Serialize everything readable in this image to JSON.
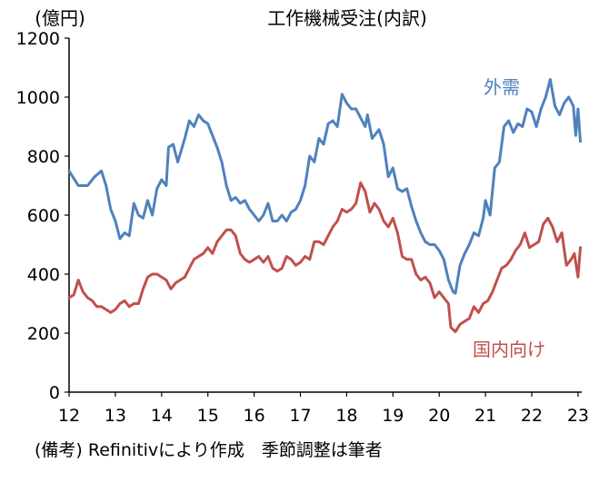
{
  "chart_data": {
    "type": "line",
    "title": "工作機械受注(内訳)",
    "ylabel": "(億円)",
    "xlabel": "",
    "source": "(備考) Refinitivにより作成　季節調整は筆者",
    "ylim": [
      0,
      1200
    ],
    "y_ticks": [
      "0",
      "200",
      "400",
      "600",
      "800",
      "1000",
      "1200"
    ],
    "y_tick_values": [
      0,
      200,
      400,
      600,
      800,
      1000,
      1200
    ],
    "x_ticks": [
      "12",
      "13",
      "14",
      "15",
      "16",
      "17",
      "18",
      "19",
      "20",
      "21",
      "22",
      "23"
    ],
    "x_tick_values": [
      2012,
      2013,
      2014,
      2015,
      2016,
      2017,
      2018,
      2019,
      2020,
      2021,
      2022,
      2023
    ],
    "xlim": [
      2012,
      2023.08
    ],
    "grid": false,
    "series": [
      {
        "name": "外需",
        "color": "#4f81bd",
        "label_color": "#4f81bd",
        "points": [
          [
            2012.0,
            750
          ],
          [
            2012.2,
            700
          ],
          [
            2012.4,
            700
          ],
          [
            2012.55,
            730
          ],
          [
            2012.7,
            750
          ],
          [
            2012.8,
            700
          ],
          [
            2012.9,
            620
          ],
          [
            2013.0,
            580
          ],
          [
            2013.1,
            520
          ],
          [
            2013.2,
            540
          ],
          [
            2013.3,
            530
          ],
          [
            2013.4,
            640
          ],
          [
            2013.5,
            600
          ],
          [
            2013.6,
            590
          ],
          [
            2013.7,
            650
          ],
          [
            2013.8,
            600
          ],
          [
            2013.9,
            690
          ],
          [
            2014.0,
            720
          ],
          [
            2014.1,
            700
          ],
          [
            2014.15,
            830
          ],
          [
            2014.25,
            840
          ],
          [
            2014.35,
            780
          ],
          [
            2014.5,
            860
          ],
          [
            2014.6,
            920
          ],
          [
            2014.7,
            900
          ],
          [
            2014.8,
            940
          ],
          [
            2014.9,
            920
          ],
          [
            2015.0,
            910
          ],
          [
            2015.1,
            870
          ],
          [
            2015.2,
            830
          ],
          [
            2015.3,
            780
          ],
          [
            2015.4,
            700
          ],
          [
            2015.5,
            650
          ],
          [
            2015.6,
            660
          ],
          [
            2015.7,
            640
          ],
          [
            2015.8,
            650
          ],
          [
            2015.9,
            620
          ],
          [
            2016.0,
            600
          ],
          [
            2016.1,
            580
          ],
          [
            2016.2,
            600
          ],
          [
            2016.3,
            640
          ],
          [
            2016.4,
            580
          ],
          [
            2016.5,
            580
          ],
          [
            2016.6,
            600
          ],
          [
            2016.7,
            580
          ],
          [
            2016.8,
            610
          ],
          [
            2016.9,
            620
          ],
          [
            2017.0,
            650
          ],
          [
            2017.1,
            700
          ],
          [
            2017.2,
            800
          ],
          [
            2017.3,
            780
          ],
          [
            2017.4,
            860
          ],
          [
            2017.5,
            840
          ],
          [
            2017.6,
            910
          ],
          [
            2017.7,
            920
          ],
          [
            2017.8,
            900
          ],
          [
            2017.9,
            1010
          ],
          [
            2018.0,
            980
          ],
          [
            2018.1,
            960
          ],
          [
            2018.2,
            960
          ],
          [
            2018.3,
            930
          ],
          [
            2018.4,
            900
          ],
          [
            2018.45,
            940
          ],
          [
            2018.55,
            860
          ],
          [
            2018.7,
            890
          ],
          [
            2018.8,
            840
          ],
          [
            2018.9,
            730
          ],
          [
            2019.0,
            760
          ],
          [
            2019.1,
            690
          ],
          [
            2019.2,
            680
          ],
          [
            2019.3,
            690
          ],
          [
            2019.4,
            630
          ],
          [
            2019.5,
            580
          ],
          [
            2019.6,
            540
          ],
          [
            2019.7,
            510
          ],
          [
            2019.8,
            500
          ],
          [
            2019.9,
            500
          ],
          [
            2020.0,
            480
          ],
          [
            2020.1,
            450
          ],
          [
            2020.2,
            380
          ],
          [
            2020.3,
            340
          ],
          [
            2020.35,
            335
          ],
          [
            2020.45,
            430
          ],
          [
            2020.55,
            470
          ],
          [
            2020.65,
            500
          ],
          [
            2020.75,
            540
          ],
          [
            2020.85,
            530
          ],
          [
            2020.95,
            590
          ],
          [
            2021.0,
            650
          ],
          [
            2021.1,
            600
          ],
          [
            2021.2,
            760
          ],
          [
            2021.3,
            780
          ],
          [
            2021.4,
            900
          ],
          [
            2021.5,
            920
          ],
          [
            2021.6,
            880
          ],
          [
            2021.7,
            910
          ],
          [
            2021.8,
            900
          ],
          [
            2021.9,
            960
          ],
          [
            2022.0,
            950
          ],
          [
            2022.1,
            900
          ],
          [
            2022.2,
            960
          ],
          [
            2022.3,
            1000
          ],
          [
            2022.4,
            1060
          ],
          [
            2022.5,
            970
          ],
          [
            2022.6,
            940
          ],
          [
            2022.7,
            980
          ],
          [
            2022.8,
            1000
          ],
          [
            2022.9,
            970
          ],
          [
            2022.95,
            870
          ],
          [
            2023.0,
            960
          ],
          [
            2023.05,
            850
          ]
        ]
      },
      {
        "name": "国内向け",
        "color": "#c0504d",
        "label_color": "#c0504d",
        "points": [
          [
            2012.0,
            320
          ],
          [
            2012.1,
            330
          ],
          [
            2012.2,
            380
          ],
          [
            2012.3,
            340
          ],
          [
            2012.4,
            320
          ],
          [
            2012.5,
            310
          ],
          [
            2012.6,
            290
          ],
          [
            2012.7,
            290
          ],
          [
            2012.8,
            280
          ],
          [
            2012.9,
            270
          ],
          [
            2013.0,
            280
          ],
          [
            2013.1,
            300
          ],
          [
            2013.2,
            310
          ],
          [
            2013.3,
            290
          ],
          [
            2013.4,
            300
          ],
          [
            2013.5,
            300
          ],
          [
            2013.6,
            350
          ],
          [
            2013.7,
            390
          ],
          [
            2013.8,
            400
          ],
          [
            2013.9,
            400
          ],
          [
            2014.0,
            390
          ],
          [
            2014.1,
            380
          ],
          [
            2014.2,
            350
          ],
          [
            2014.3,
            370
          ],
          [
            2014.4,
            380
          ],
          [
            2014.5,
            390
          ],
          [
            2014.6,
            420
          ],
          [
            2014.7,
            450
          ],
          [
            2014.8,
            460
          ],
          [
            2014.9,
            470
          ],
          [
            2015.0,
            490
          ],
          [
            2015.1,
            470
          ],
          [
            2015.2,
            510
          ],
          [
            2015.3,
            530
          ],
          [
            2015.4,
            550
          ],
          [
            2015.5,
            550
          ],
          [
            2015.6,
            530
          ],
          [
            2015.7,
            470
          ],
          [
            2015.8,
            450
          ],
          [
            2015.9,
            440
          ],
          [
            2016.0,
            450
          ],
          [
            2016.1,
            460
          ],
          [
            2016.2,
            440
          ],
          [
            2016.3,
            460
          ],
          [
            2016.4,
            420
          ],
          [
            2016.5,
            410
          ],
          [
            2016.6,
            420
          ],
          [
            2016.7,
            460
          ],
          [
            2016.8,
            450
          ],
          [
            2016.9,
            430
          ],
          [
            2017.0,
            440
          ],
          [
            2017.1,
            460
          ],
          [
            2017.2,
            450
          ],
          [
            2017.3,
            510
          ],
          [
            2017.4,
            510
          ],
          [
            2017.5,
            500
          ],
          [
            2017.6,
            530
          ],
          [
            2017.7,
            560
          ],
          [
            2017.8,
            580
          ],
          [
            2017.9,
            620
          ],
          [
            2018.0,
            610
          ],
          [
            2018.1,
            620
          ],
          [
            2018.2,
            640
          ],
          [
            2018.3,
            710
          ],
          [
            2018.4,
            680
          ],
          [
            2018.5,
            610
          ],
          [
            2018.6,
            640
          ],
          [
            2018.7,
            620
          ],
          [
            2018.8,
            580
          ],
          [
            2018.9,
            560
          ],
          [
            2019.0,
            590
          ],
          [
            2019.1,
            540
          ],
          [
            2019.2,
            460
          ],
          [
            2019.3,
            450
          ],
          [
            2019.4,
            450
          ],
          [
            2019.5,
            400
          ],
          [
            2019.6,
            380
          ],
          [
            2019.7,
            390
          ],
          [
            2019.8,
            370
          ],
          [
            2019.9,
            320
          ],
          [
            2020.0,
            340
          ],
          [
            2020.1,
            320
          ],
          [
            2020.2,
            300
          ],
          [
            2020.25,
            220
          ],
          [
            2020.35,
            205
          ],
          [
            2020.45,
            230
          ],
          [
            2020.55,
            240
          ],
          [
            2020.65,
            250
          ],
          [
            2020.75,
            290
          ],
          [
            2020.85,
            270
          ],
          [
            2020.95,
            300
          ],
          [
            2021.05,
            310
          ],
          [
            2021.15,
            340
          ],
          [
            2021.25,
            380
          ],
          [
            2021.35,
            420
          ],
          [
            2021.45,
            430
          ],
          [
            2021.55,
            450
          ],
          [
            2021.65,
            480
          ],
          [
            2021.75,
            500
          ],
          [
            2021.85,
            540
          ],
          [
            2021.95,
            490
          ],
          [
            2022.05,
            500
          ],
          [
            2022.15,
            510
          ],
          [
            2022.25,
            570
          ],
          [
            2022.35,
            590
          ],
          [
            2022.45,
            560
          ],
          [
            2022.55,
            510
          ],
          [
            2022.65,
            540
          ],
          [
            2022.75,
            430
          ],
          [
            2022.85,
            450
          ],
          [
            2022.92,
            470
          ],
          [
            2023.0,
            390
          ],
          [
            2023.05,
            490
          ]
        ]
      }
    ]
  }
}
